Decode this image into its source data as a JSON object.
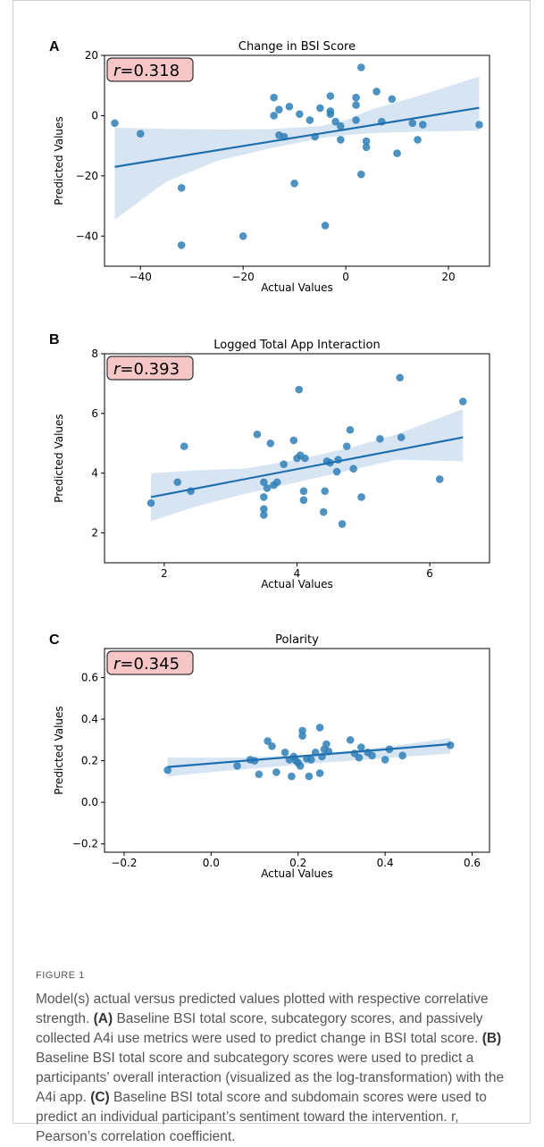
{
  "colors": {
    "point": "#2f7fb7",
    "line": "#1f6faf",
    "band": "#c9dcef",
    "rbox_fill": "#f7c6c6",
    "rbox_border": "#333333"
  },
  "panels": [
    {
      "letter": "A",
      "chart_data": {
        "type": "scatter",
        "title": "Change in BSI Score",
        "xlabel": "Actual Values",
        "ylabel": "Predicted Values",
        "annotation": "r=0.318",
        "r_label": "r",
        "r_value": "=0.318",
        "xlim": [
          -47,
          28
        ],
        "ylim": [
          -50,
          20
        ],
        "xticks": [
          -40,
          -20,
          0,
          20
        ],
        "xtick_labels": [
          "−40",
          "−20",
          "0",
          "20"
        ],
        "yticks": [
          -40,
          -20,
          0,
          20
        ],
        "ytick_labels": [
          "−40",
          "−20",
          "0",
          "20"
        ],
        "regression": {
          "x": [
            -45,
            26
          ],
          "y": [
            -17,
            2.6
          ]
        },
        "band": {
          "x": [
            -45,
            -35,
            -25,
            -15,
            -5,
            0,
            5,
            15,
            26
          ],
          "upper": [
            -4,
            -4.4,
            -4.6,
            -4.5,
            -3.5,
            -1.5,
            2,
            7,
            13
          ],
          "lower": [
            -34.5,
            -22,
            -15,
            -11,
            -7.5,
            -6.5,
            -5.8,
            -5.3,
            -5
          ]
        },
        "points": [
          [
            -45,
            -2.5
          ],
          [
            -40,
            -6
          ],
          [
            -32,
            -24
          ],
          [
            -32,
            -43
          ],
          [
            -20,
            -40
          ],
          [
            -14,
            6
          ],
          [
            -14,
            0
          ],
          [
            -13,
            2
          ],
          [
            -13,
            -6.5
          ],
          [
            -12,
            -7
          ],
          [
            -11,
            3
          ],
          [
            -10,
            -22.5
          ],
          [
            -9,
            0.5
          ],
          [
            -7,
            -1.5
          ],
          [
            -6,
            -7
          ],
          [
            -5,
            2.5
          ],
          [
            -4,
            -36.5
          ],
          [
            -3,
            6.5
          ],
          [
            -3,
            0.5
          ],
          [
            -3,
            1.5
          ],
          [
            -2,
            -2
          ],
          [
            -1,
            -3.5
          ],
          [
            -1,
            -8
          ],
          [
            2,
            3.5
          ],
          [
            2,
            6
          ],
          [
            2,
            -1.5
          ],
          [
            3,
            16
          ],
          [
            3,
            -19.5
          ],
          [
            4,
            -8.5
          ],
          [
            4,
            -10.5
          ],
          [
            6,
            8
          ],
          [
            7,
            -2
          ],
          [
            9,
            5.5
          ],
          [
            10,
            -12.5
          ],
          [
            13,
            -2.5
          ],
          [
            14,
            -8
          ],
          [
            15,
            -3
          ],
          [
            26,
            -3
          ]
        ]
      }
    },
    {
      "letter": "B",
      "chart_data": {
        "type": "scatter",
        "title": "Logged Total App Interaction",
        "xlabel": "Actual Values",
        "ylabel": "Predicted Values",
        "annotation": "r=0.393",
        "r_label": "r",
        "r_value": "=0.393",
        "xlim": [
          1.1,
          6.9
        ],
        "ylim": [
          1.0,
          8.0
        ],
        "xticks": [
          2,
          4,
          6
        ],
        "xtick_labels": [
          "2",
          "4",
          "6"
        ],
        "yticks": [
          2,
          4,
          6,
          8
        ],
        "ytick_labels": [
          "2",
          "4",
          "6",
          "8"
        ],
        "regression": {
          "x": [
            1.8,
            6.5
          ],
          "y": [
            3.2,
            5.2
          ]
        },
        "band": {
          "x": [
            1.8,
            2.5,
            3.2,
            4.0,
            4.8,
            5.5,
            6.5
          ],
          "upper": [
            4.0,
            4.1,
            4.15,
            4.45,
            4.85,
            5.3,
            6.15
          ],
          "lower": [
            2.4,
            2.9,
            3.3,
            3.7,
            4.1,
            4.45,
            4.4
          ]
        },
        "points": [
          [
            1.8,
            3.0
          ],
          [
            2.2,
            3.7
          ],
          [
            2.3,
            4.9
          ],
          [
            2.4,
            3.4
          ],
          [
            3.4,
            5.3
          ],
          [
            3.5,
            3.2
          ],
          [
            3.5,
            3.7
          ],
          [
            3.5,
            2.8
          ],
          [
            3.5,
            2.6
          ],
          [
            3.55,
            3.5
          ],
          [
            3.6,
            5.0
          ],
          [
            3.65,
            3.6
          ],
          [
            3.7,
            3.7
          ],
          [
            3.8,
            4.3
          ],
          [
            3.95,
            5.1
          ],
          [
            4.0,
            4.5
          ],
          [
            4.03,
            6.8
          ],
          [
            4.05,
            4.6
          ],
          [
            4.1,
            3.4
          ],
          [
            4.1,
            3.1
          ],
          [
            4.12,
            4.5
          ],
          [
            4.4,
            2.7
          ],
          [
            4.42,
            3.4
          ],
          [
            4.45,
            4.4
          ],
          [
            4.5,
            4.35
          ],
          [
            4.6,
            4.05
          ],
          [
            4.62,
            4.45
          ],
          [
            4.68,
            2.3
          ],
          [
            4.75,
            4.9
          ],
          [
            4.8,
            5.45
          ],
          [
            4.85,
            4.15
          ],
          [
            4.97,
            3.2
          ],
          [
            5.25,
            5.15
          ],
          [
            5.55,
            7.2
          ],
          [
            5.57,
            5.2
          ],
          [
            6.15,
            3.8
          ],
          [
            6.5,
            6.4
          ]
        ]
      }
    },
    {
      "letter": "C",
      "chart_data": {
        "type": "scatter",
        "title": "Polarity",
        "xlabel": "Actual Values",
        "ylabel": "Predicted Values",
        "annotation": "r=0.345",
        "r_label": "r",
        "r_value": "=0.345",
        "xlim": [
          -0.245,
          0.64
        ],
        "ylim": [
          -0.24,
          0.74
        ],
        "xticks": [
          -0.2,
          0.0,
          0.2,
          0.4,
          0.6
        ],
        "xtick_labels": [
          "−0.2",
          "0.0",
          "0.2",
          "0.4",
          "0.6"
        ],
        "yticks": [
          -0.2,
          0.0,
          0.2,
          0.4,
          0.6
        ],
        "ytick_labels": [
          "−0.2",
          "0.0",
          "0.2",
          "0.4",
          "0.6"
        ],
        "regression": {
          "x": [
            -0.1,
            0.55
          ],
          "y": [
            0.17,
            0.28
          ]
        },
        "band": {
          "x": [
            -0.1,
            0.05,
            0.2,
            0.25,
            0.35,
            0.45,
            0.55
          ],
          "upper": [
            0.215,
            0.215,
            0.225,
            0.23,
            0.255,
            0.28,
            0.31
          ],
          "lower": [
            0.125,
            0.155,
            0.18,
            0.19,
            0.205,
            0.22,
            0.235
          ]
        },
        "points": [
          [
            -0.1,
            0.155
          ],
          [
            0.06,
            0.175
          ],
          [
            0.09,
            0.205
          ],
          [
            0.1,
            0.2
          ],
          [
            0.11,
            0.135
          ],
          [
            0.13,
            0.295
          ],
          [
            0.14,
            0.27
          ],
          [
            0.15,
            0.145
          ],
          [
            0.17,
            0.24
          ],
          [
            0.18,
            0.205
          ],
          [
            0.185,
            0.125
          ],
          [
            0.19,
            0.22
          ],
          [
            0.195,
            0.2
          ],
          [
            0.2,
            0.19
          ],
          [
            0.205,
            0.175
          ],
          [
            0.21,
            0.32
          ],
          [
            0.21,
            0.345
          ],
          [
            0.22,
            0.21
          ],
          [
            0.225,
            0.125
          ],
          [
            0.23,
            0.205
          ],
          [
            0.24,
            0.24
          ],
          [
            0.25,
            0.14
          ],
          [
            0.25,
            0.36
          ],
          [
            0.255,
            0.22
          ],
          [
            0.26,
            0.255
          ],
          [
            0.265,
            0.28
          ],
          [
            0.27,
            0.245
          ],
          [
            0.32,
            0.3
          ],
          [
            0.33,
            0.235
          ],
          [
            0.34,
            0.215
          ],
          [
            0.345,
            0.265
          ],
          [
            0.36,
            0.24
          ],
          [
            0.37,
            0.225
          ],
          [
            0.4,
            0.205
          ],
          [
            0.41,
            0.255
          ],
          [
            0.44,
            0.225
          ],
          [
            0.55,
            0.275
          ]
        ]
      }
    }
  ],
  "caption": {
    "label": "FIGURE 1",
    "intro": "Model(s) actual versus predicted values plotted with respective correlative strength. ",
    "a_tag": "(A)",
    "a_text": " Baseline BSI total score, subcategory scores, and passively collected A4i use metrics were used to predict change in BSI total score. ",
    "b_tag": "(B)",
    "b_text": " Baseline BSI total score and subcategory scores were used to predict a participants’ overall interaction (visualized as the log-transformation) with the A4i app. ",
    "c_tag": "(C)",
    "c_text": " Baseline BSI total score and subdomain scores were used to predict an individual participant’s sentiment toward the intervention. r, Pearson’s correlation coefficient."
  }
}
